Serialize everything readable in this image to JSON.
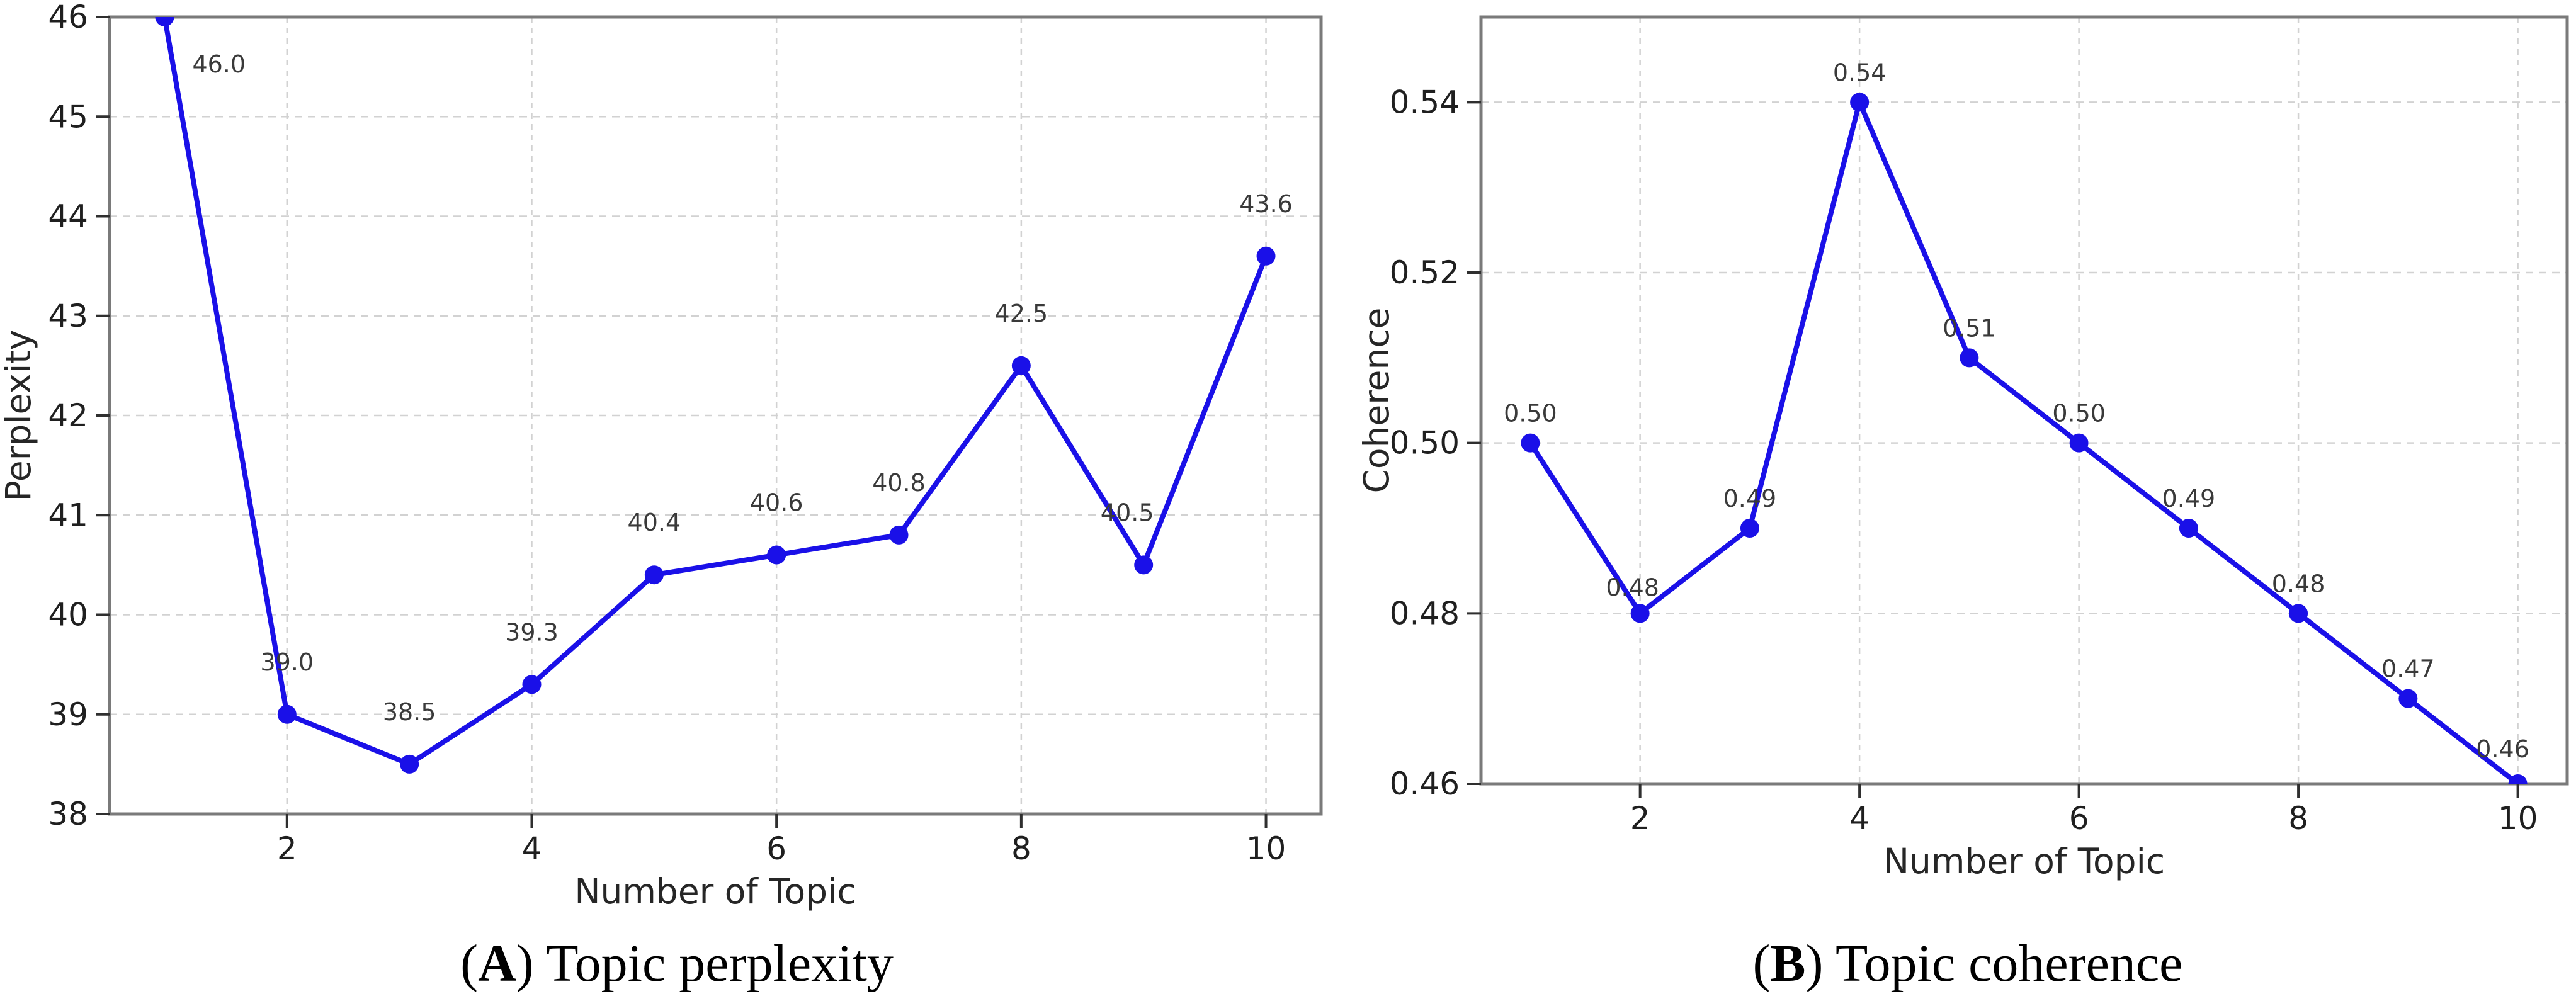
{
  "chart_data": [
    {
      "type": "line",
      "panel": "A",
      "xlabel": "Number of Topic",
      "ylabel": "Perplexity",
      "x": [
        1,
        2,
        3,
        4,
        5,
        6,
        7,
        8,
        9,
        10
      ],
      "y": [
        46.0,
        39.0,
        38.5,
        39.3,
        40.4,
        40.6,
        40.8,
        42.5,
        40.5,
        43.6
      ],
      "point_labels": [
        "46.0",
        "39.0",
        "38.5",
        "39.3",
        "40.4",
        "40.6",
        "40.8",
        "42.5",
        "40.5",
        "43.6"
      ],
      "xlim": [
        0.55,
        10.45
      ],
      "ylim": [
        38,
        46
      ],
      "xticks": [
        2,
        4,
        6,
        8,
        10
      ],
      "xtick_labels": [
        "2",
        "4",
        "6",
        "8",
        "10"
      ],
      "yticks": [
        38,
        39,
        40,
        41,
        42,
        43,
        44,
        45,
        46
      ],
      "ytick_labels": [
        "38",
        "39",
        "40",
        "41",
        "42",
        "43",
        "44",
        "45",
        "46"
      ],
      "grid": "dashed",
      "legend": "none",
      "marker": "circle",
      "caption": {
        "open": "(",
        "letter": "A",
        "rest": ") Topic perplexity"
      }
    },
    {
      "type": "line",
      "panel": "B",
      "xlabel": "Number of Topic",
      "ylabel": "Coherence",
      "x": [
        1,
        2,
        3,
        4,
        5,
        6,
        7,
        8,
        9,
        10
      ],
      "y": [
        0.5,
        0.48,
        0.49,
        0.54,
        0.51,
        0.5,
        0.49,
        0.48,
        0.47,
        0.46
      ],
      "point_labels": [
        "0.50",
        "0.48",
        "0.49",
        "0.54",
        "0.51",
        "0.50",
        "0.49",
        "0.48",
        "0.47",
        "0.46"
      ],
      "xlim": [
        0.55,
        10.45
      ],
      "ylim": [
        0.46,
        0.55
      ],
      "xticks": [
        2,
        4,
        6,
        8,
        10
      ],
      "xtick_labels": [
        "2",
        "4",
        "6",
        "8",
        "10"
      ],
      "yticks": [
        0.46,
        0.48,
        0.5,
        0.52,
        0.54
      ],
      "ytick_labels": [
        "0.46",
        "0.48",
        "0.50",
        "0.52",
        "0.54"
      ],
      "grid": "dashed",
      "legend": "none",
      "marker": "circle",
      "caption": {
        "open": "(",
        "letter": "B",
        "rest": ") Topic coherence"
      }
    }
  ],
  "style": {
    "line_color": "#1a10e8",
    "marker_color": "#1a10e8",
    "grid_color": "#d2d2d2",
    "spine_color": "#7a7a7a",
    "tick_color": "#2f2f2f",
    "background": "#ffffff"
  }
}
